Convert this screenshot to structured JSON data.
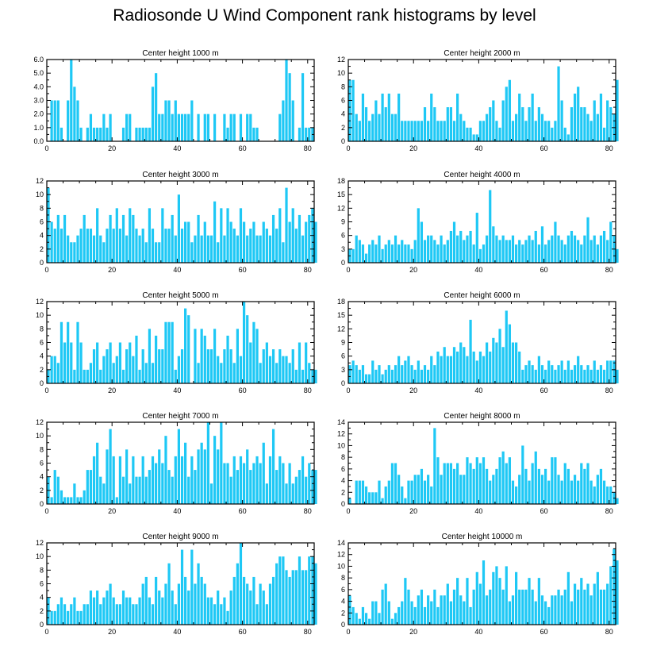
{
  "title": "Radiosonde U Wind Component rank histograms by level",
  "colors": {
    "bar": "#1ec8f5",
    "axis": "#000000"
  },
  "chart_data": [
    {
      "type": "bar",
      "title": "Center height 1000 m",
      "xlim": [
        0,
        82
      ],
      "ylim": [
        0,
        6
      ],
      "xticks": [
        0,
        20,
        40,
        60,
        80
      ],
      "yticks": [
        "0.0",
        "1.0",
        "2.0",
        "3.0",
        "4.0",
        "5.0",
        "6.0"
      ],
      "ytick_values": [
        0,
        1,
        2,
        3,
        4,
        5,
        6
      ],
      "values": [
        0,
        3,
        3,
        3,
        1,
        0,
        3,
        6,
        4,
        3,
        1,
        0,
        1,
        2,
        1,
        1,
        1,
        2,
        1,
        2,
        0,
        0,
        0,
        1,
        2,
        2,
        0,
        1,
        1,
        1,
        1,
        1,
        4,
        5,
        2,
        2,
        3,
        3,
        2,
        3,
        2,
        2,
        2,
        2,
        3,
        0,
        2,
        0,
        2,
        2,
        0,
        2,
        0,
        0,
        2,
        1,
        2,
        2,
        0,
        2,
        0,
        2,
        2,
        1,
        1,
        0,
        0,
        0,
        0,
        0,
        0,
        2,
        3,
        6,
        5,
        3,
        0,
        1,
        5,
        1,
        1,
        1
      ]
    },
    {
      "type": "bar",
      "title": "Center height 2000 m",
      "xlim": [
        0,
        82
      ],
      "ylim": [
        0,
        12
      ],
      "xticks": [
        0,
        20,
        40,
        60,
        80
      ],
      "yticks": [
        "0",
        "2",
        "4",
        "6",
        "8",
        "10",
        "12"
      ],
      "ytick_values": [
        0,
        2,
        4,
        6,
        8,
        10,
        12
      ],
      "values": [
        9,
        9,
        4,
        3,
        7,
        5,
        3,
        4,
        6,
        4,
        7,
        5,
        7,
        4,
        4,
        7,
        3,
        3,
        3,
        3,
        3,
        3,
        3,
        5,
        3,
        7,
        5,
        3,
        3,
        3,
        5,
        5,
        3,
        7,
        4,
        3,
        2,
        2,
        1,
        1,
        3,
        3,
        4,
        5,
        6,
        3,
        2,
        6,
        8,
        9,
        3,
        4,
        7,
        5,
        3,
        5,
        7,
        3,
        5,
        4,
        3,
        3,
        2,
        3,
        11,
        6,
        2,
        1,
        5,
        7,
        8,
        5,
        5,
        4,
        3,
        6,
        4,
        7,
        2,
        6,
        5,
        4,
        9
      ]
    },
    {
      "type": "bar",
      "title": "Center height 3000 m",
      "xlim": [
        0,
        82
      ],
      "ylim": [
        0,
        12
      ],
      "xticks": [
        0,
        20,
        40,
        60,
        80
      ],
      "yticks": [
        "0",
        "2",
        "4",
        "6",
        "8",
        "10",
        "12"
      ],
      "ytick_values": [
        0,
        2,
        4,
        6,
        8,
        10,
        12
      ],
      "values": [
        11,
        6,
        5,
        7,
        5,
        7,
        4,
        3,
        3,
        4,
        5,
        7,
        5,
        5,
        4,
        8,
        4,
        3,
        5,
        7,
        5,
        8,
        5,
        7,
        4,
        8,
        7,
        5,
        4,
        5,
        3,
        8,
        5,
        3,
        3,
        8,
        5,
        5,
        7,
        4,
        10,
        5,
        6,
        6,
        3,
        4,
        7,
        4,
        6,
        4,
        4,
        9,
        3,
        8,
        4,
        8,
        6,
        5,
        4,
        8,
        6,
        4,
        5,
        6,
        4,
        4,
        6,
        5,
        4,
        7,
        5,
        8,
        3,
        11,
        6,
        8,
        5,
        7,
        4,
        6,
        7,
        8,
        6
      ]
    },
    {
      "type": "bar",
      "title": "Center height 4000 m",
      "xlim": [
        0,
        82
      ],
      "ylim": [
        0,
        18
      ],
      "xticks": [
        0,
        20,
        40,
        60,
        80
      ],
      "yticks": [
        "0",
        "3",
        "6",
        "9",
        "12",
        "15",
        "18"
      ],
      "ytick_values": [
        0,
        3,
        6,
        9,
        12,
        15,
        18
      ],
      "values": [
        3,
        3,
        6,
        5,
        4,
        2,
        4,
        5,
        4,
        6,
        3,
        4,
        5,
        4,
        6,
        4,
        5,
        4,
        4,
        3,
        5,
        12,
        9,
        5,
        6,
        6,
        5,
        4,
        6,
        4,
        5,
        7,
        9,
        6,
        7,
        5,
        6,
        7,
        4,
        11,
        3,
        4,
        6,
        16,
        8,
        6,
        5,
        6,
        5,
        5,
        6,
        4,
        5,
        4,
        5,
        6,
        5,
        7,
        4,
        8,
        4,
        5,
        6,
        9,
        6,
        5,
        4,
        6,
        7,
        6,
        5,
        4,
        6,
        10,
        5,
        6,
        4,
        6,
        7,
        5,
        9,
        6,
        3
      ]
    },
    {
      "type": "bar",
      "title": "Center height 5000 m",
      "xlim": [
        0,
        82
      ],
      "ylim": [
        0,
        12
      ],
      "xticks": [
        0,
        20,
        40,
        60,
        80
      ],
      "yticks": [
        "0",
        "2",
        "4",
        "6",
        "8",
        "10",
        "12"
      ],
      "ytick_values": [
        0,
        2,
        4,
        6,
        8,
        10,
        12
      ],
      "values": [
        2,
        4,
        4,
        3,
        9,
        6,
        9,
        6,
        2,
        9,
        6,
        2,
        2,
        3,
        5,
        6,
        2,
        4,
        5,
        6,
        3,
        4,
        6,
        2,
        5,
        6,
        4,
        7,
        2,
        5,
        3,
        8,
        3,
        7,
        5,
        5,
        9,
        9,
        9,
        2,
        4,
        5,
        11,
        10,
        0,
        8,
        3,
        8,
        7,
        5,
        5,
        8,
        4,
        3,
        5,
        7,
        5,
        3,
        8,
        4,
        12,
        10,
        6,
        9,
        8,
        3,
        5,
        6,
        4,
        5,
        3,
        5,
        4,
        4,
        3,
        5,
        2,
        6,
        2,
        6,
        3,
        2,
        2
      ]
    },
    {
      "type": "bar",
      "title": "Center height 6000 m",
      "xlim": [
        0,
        82
      ],
      "ylim": [
        0,
        18
      ],
      "xticks": [
        0,
        20,
        40,
        60,
        80
      ],
      "yticks": [
        "0",
        "3",
        "6",
        "9",
        "12",
        "15",
        "18"
      ],
      "ytick_values": [
        0,
        3,
        6,
        9,
        12,
        15,
        18
      ],
      "values": [
        4,
        5,
        4,
        3,
        4,
        2,
        2,
        5,
        3,
        4,
        2,
        3,
        4,
        3,
        4,
        6,
        4,
        5,
        6,
        4,
        3,
        5,
        3,
        4,
        3,
        6,
        4,
        7,
        6,
        8,
        6,
        6,
        8,
        7,
        9,
        8,
        6,
        14,
        7,
        5,
        7,
        6,
        9,
        7,
        10,
        9,
        12,
        8,
        16,
        13,
        9,
        9,
        7,
        3,
        4,
        5,
        4,
        3,
        6,
        4,
        3,
        5,
        4,
        3,
        4,
        5,
        3,
        5,
        3,
        4,
        6,
        4,
        3,
        4,
        3,
        5,
        3,
        4,
        3,
        5,
        5,
        5,
        3
      ]
    },
    {
      "type": "bar",
      "title": "Center height 7000 m",
      "xlim": [
        0,
        82
      ],
      "ylim": [
        0,
        12
      ],
      "xticks": [
        0,
        20,
        40,
        60,
        80
      ],
      "yticks": [
        "0",
        "2",
        "4",
        "6",
        "8",
        "10",
        "12"
      ],
      "ytick_values": [
        0,
        2,
        4,
        6,
        8,
        10,
        12
      ],
      "values": [
        4,
        1,
        5,
        4,
        2,
        1,
        1,
        1,
        3,
        1,
        1,
        2,
        5,
        5,
        7,
        9,
        4,
        3,
        8,
        11,
        7,
        1,
        7,
        4,
        8,
        3,
        7,
        4,
        4,
        7,
        4,
        5,
        7,
        6,
        8,
        6,
        10,
        5,
        4,
        7,
        11,
        7,
        9,
        4,
        7,
        5,
        8,
        9,
        8,
        12,
        3,
        10,
        8,
        12,
        6,
        6,
        4,
        7,
        5,
        7,
        6,
        8,
        5,
        6,
        7,
        6,
        9,
        3,
        7,
        11,
        5,
        7,
        6,
        3,
        6,
        3,
        4,
        5,
        7,
        4,
        6,
        5,
        5
      ]
    },
    {
      "type": "bar",
      "title": "Center height 8000 m",
      "xlim": [
        0,
        82
      ],
      "ylim": [
        0,
        14
      ],
      "xticks": [
        0,
        20,
        40,
        60,
        80
      ],
      "yticks": [
        "0",
        "2",
        "4",
        "6",
        "8",
        "10",
        "12",
        "14"
      ],
      "ytick_values": [
        0,
        2,
        4,
        6,
        8,
        10,
        12,
        14
      ],
      "values": [
        1,
        0,
        4,
        4,
        4,
        3,
        2,
        2,
        2,
        4,
        1,
        3,
        4,
        7,
        7,
        5,
        3,
        1,
        4,
        4,
        5,
        5,
        6,
        4,
        5,
        3,
        13,
        8,
        5,
        7,
        7,
        7,
        6,
        7,
        5,
        5,
        8,
        7,
        6,
        8,
        7,
        8,
        6,
        4,
        5,
        6,
        8,
        9,
        7,
        8,
        4,
        3,
        5,
        10,
        6,
        4,
        7,
        9,
        6,
        5,
        6,
        4,
        8,
        8,
        5,
        4,
        7,
        6,
        4,
        5,
        4,
        7,
        6,
        7,
        4,
        3,
        5,
        6,
        4,
        3,
        3,
        2,
        1
      ]
    },
    {
      "type": "bar",
      "title": "Center height 9000 m",
      "xlim": [
        0,
        82
      ],
      "ylim": [
        0,
        12
      ],
      "xticks": [
        0,
        20,
        40,
        60,
        80
      ],
      "yticks": [
        "0",
        "2",
        "4",
        "6",
        "8",
        "10",
        "12"
      ],
      "ytick_values": [
        0,
        2,
        4,
        6,
        8,
        10,
        12
      ],
      "values": [
        4,
        2,
        2,
        3,
        4,
        3,
        2,
        3,
        4,
        2,
        2,
        3,
        3,
        5,
        4,
        5,
        3,
        4,
        5,
        6,
        4,
        3,
        3,
        5,
        4,
        4,
        3,
        3,
        4,
        6,
        7,
        4,
        3,
        7,
        5,
        4,
        6,
        9,
        5,
        3,
        6,
        11,
        7,
        5,
        11,
        6,
        9,
        7,
        6,
        4,
        4,
        3,
        5,
        3,
        4,
        2,
        5,
        7,
        9,
        12,
        7,
        6,
        5,
        7,
        3,
        6,
        5,
        3,
        6,
        7,
        9,
        10,
        10,
        8,
        7,
        8,
        8,
        10,
        8,
        8,
        10,
        10,
        9
      ]
    },
    {
      "type": "bar",
      "title": "Center height 10000 m",
      "xlim": [
        0,
        82
      ],
      "ylim": [
        0,
        14
      ],
      "xticks": [
        0,
        20,
        40,
        60,
        80
      ],
      "yticks": [
        "0",
        "2",
        "4",
        "6",
        "8",
        "10",
        "12",
        "14"
      ],
      "ytick_values": [
        0,
        2,
        4,
        6,
        8,
        10,
        12,
        14
      ],
      "values": [
        5,
        3,
        2,
        1,
        3,
        2,
        1,
        4,
        4,
        2,
        6,
        7,
        4,
        1,
        2,
        3,
        4,
        8,
        6,
        4,
        3,
        5,
        6,
        3,
        5,
        4,
        6,
        3,
        5,
        5,
        7,
        4,
        6,
        8,
        5,
        4,
        8,
        3,
        6,
        9,
        7,
        11,
        5,
        6,
        9,
        10,
        8,
        6,
        10,
        4,
        5,
        9,
        6,
        6,
        6,
        8,
        6,
        4,
        8,
        5,
        4,
        3,
        5,
        5,
        6,
        5,
        6,
        9,
        4,
        7,
        6,
        8,
        6,
        7,
        5,
        7,
        9,
        6,
        6,
        7,
        10,
        13,
        11
      ]
    }
  ]
}
